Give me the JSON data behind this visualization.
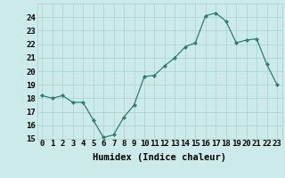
{
  "x": [
    0,
    1,
    2,
    3,
    4,
    5,
    6,
    7,
    8,
    9,
    10,
    11,
    12,
    13,
    14,
    15,
    16,
    17,
    18,
    19,
    20,
    21,
    22,
    23
  ],
  "y": [
    18.2,
    18.0,
    18.2,
    17.7,
    17.7,
    16.4,
    15.1,
    15.3,
    16.6,
    17.5,
    19.6,
    19.7,
    20.4,
    21.0,
    21.8,
    22.1,
    24.1,
    24.3,
    23.7,
    22.1,
    22.3,
    22.4,
    20.5,
    19.0
  ],
  "line_color": "#2e7d6e",
  "marker": "D",
  "marker_size": 2.0,
  "bg_color": "#cceaea",
  "grid_color": "#aacfcf",
  "xlabel": "Humidex (Indice chaleur)",
  "ylim": [
    15,
    25
  ],
  "xlim": [
    -0.5,
    23.5
  ],
  "yticks": [
    15,
    16,
    17,
    18,
    19,
    20,
    21,
    22,
    23,
    24
  ],
  "xticks": [
    0,
    1,
    2,
    3,
    4,
    5,
    6,
    7,
    8,
    9,
    10,
    11,
    12,
    13,
    14,
    15,
    16,
    17,
    18,
    19,
    20,
    21,
    22,
    23
  ],
  "xtick_labels": [
    "0",
    "1",
    "2",
    "3",
    "4",
    "5",
    "6",
    "7",
    "8",
    "9",
    "10",
    "11",
    "12",
    "13",
    "14",
    "15",
    "16",
    "17",
    "18",
    "19",
    "20",
    "21",
    "22",
    "23"
  ],
  "tick_fontsize": 6.5,
  "label_fontsize": 7.5
}
